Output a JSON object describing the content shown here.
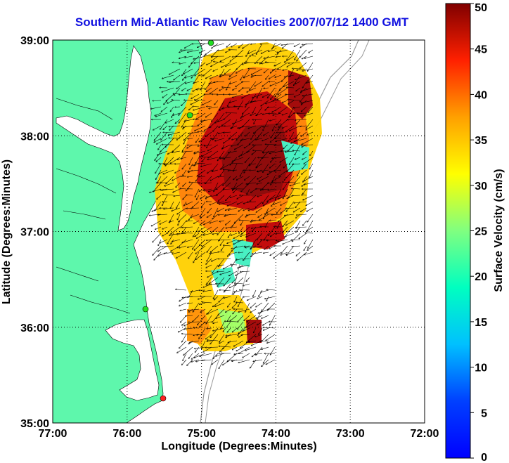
{
  "title": "Southern Mid-Atlantic Raw Velocities 2007/07/12 1400 GMT",
  "xlabel": "Longitude (Degrees:Minutes)",
  "ylabel": "Latitude (Degrees:Minutes)",
  "colorbar_label": "Surface Velocity (cm/s)",
  "x_ticks": [
    "77:00",
    "76:00",
    "75:00",
    "74:00",
    "73:00",
    "72:00"
  ],
  "y_ticks": [
    "39:00",
    "38:00",
    "37:00",
    "36:00",
    "35:00"
  ],
  "colorbar_ticks": [
    "50",
    "45",
    "40",
    "35",
    "30",
    "25",
    "20",
    "15",
    "10",
    "5",
    "0"
  ],
  "colors": {
    "land": "#5ef7ac",
    "title": "#1010e0",
    "site_green": "#22dd22",
    "site_red": "#ff2020"
  },
  "chart_data": {
    "type": "heatmap",
    "xlim": [
      -77,
      -72
    ],
    "ylim": [
      35,
      39
    ],
    "clim": [
      0,
      50
    ],
    "colormap": "jet",
    "grid": true,
    "overlay": "velocity vectors (arrows)",
    "colorbar_position": "right"
  }
}
